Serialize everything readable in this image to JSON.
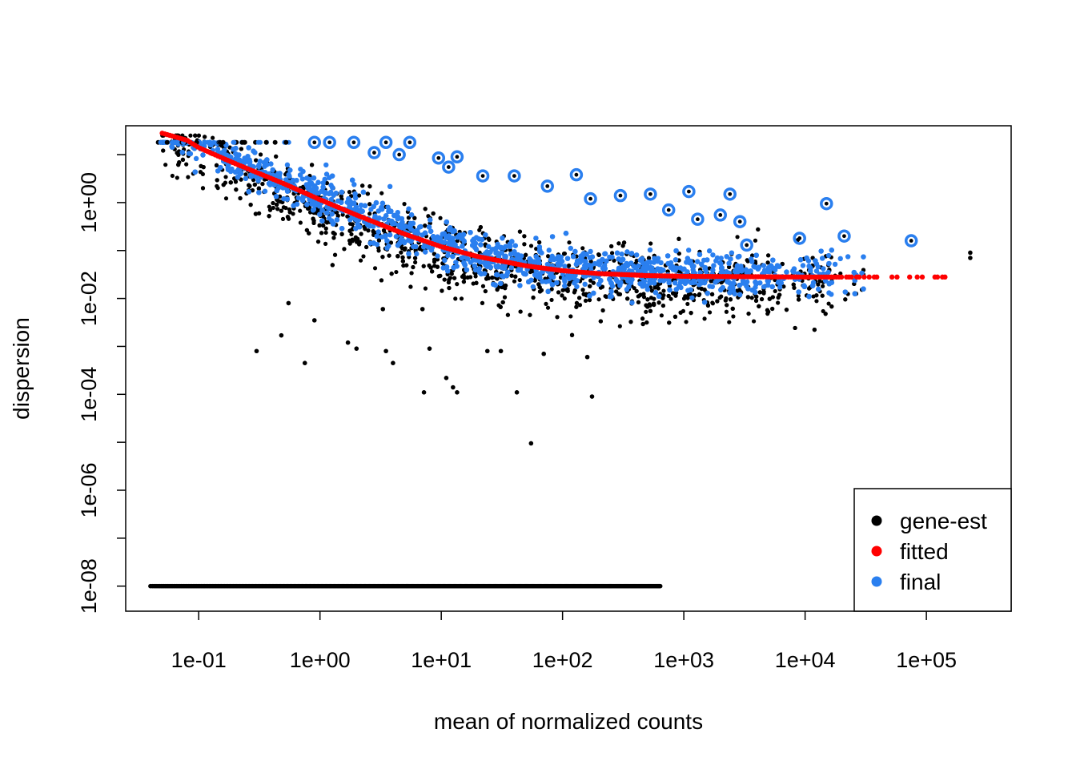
{
  "chart_data": {
    "type": "scatter",
    "title": "",
    "xlabel": "mean of normalized counts",
    "ylabel": "dispersion",
    "x_scale": "log10",
    "y_scale": "log10",
    "xlim": [
      0.025,
      500000
    ],
    "ylim": [
      3e-09,
      40
    ],
    "x_ticks": [
      {
        "value": 0.1,
        "label": "1e-01"
      },
      {
        "value": 1,
        "label": "1e+00"
      },
      {
        "value": 10,
        "label": "1e+01"
      },
      {
        "value": 100,
        "label": "1e+02"
      },
      {
        "value": 1000,
        "label": "1e+03"
      },
      {
        "value": 10000,
        "label": "1e+04"
      },
      {
        "value": 100000,
        "label": "1e+05"
      }
    ],
    "y_ticks": [
      {
        "value": 1e-08,
        "label": "1e-08"
      },
      {
        "value": 1e-07,
        "label": ""
      },
      {
        "value": 1e-06,
        "label": "1e-06"
      },
      {
        "value": 1e-05,
        "label": ""
      },
      {
        "value": 0.0001,
        "label": "1e-04"
      },
      {
        "value": 0.001,
        "label": ""
      },
      {
        "value": 0.01,
        "label": "1e-02"
      },
      {
        "value": 0.1,
        "label": ""
      },
      {
        "value": 1,
        "label": "1e+00"
      },
      {
        "value": 10,
        "label": ""
      }
    ],
    "legend": {
      "placement": "bottom-right",
      "entries": [
        {
          "label": "gene-est",
          "color": "#000000"
        },
        {
          "label": "fitted",
          "color": "#FF0000"
        },
        {
          "label": "final",
          "color": "#2A7FEF"
        }
      ]
    },
    "series": [
      {
        "name": "gene-est",
        "color": "#000000",
        "points": [
          [
            0.55,
            0.008
          ],
          [
            0.9,
            0.0035
          ],
          [
            1.7,
            0.0012
          ],
          [
            2.0,
            0.0009
          ],
          [
            3.5,
            0.0008
          ],
          [
            8.0,
            0.0009
          ],
          [
            0.3,
            0.0008
          ],
          [
            0.48,
            0.0017
          ],
          [
            0.75,
            0.00045
          ],
          [
            4.0,
            0.00045
          ],
          [
            11,
            0.00022
          ],
          [
            7.2,
            0.00011
          ],
          [
            12.5,
            0.00014
          ],
          [
            13.5,
            0.00011
          ],
          [
            42,
            0.00011
          ],
          [
            175,
            9e-05
          ],
          [
            55,
            9.5e-06
          ],
          [
            24,
            0.0008
          ],
          [
            31,
            0.0008
          ],
          [
            70,
            0.0007
          ],
          [
            160,
            0.0006
          ],
          [
            3.3,
            0.006
          ],
          [
            7,
            0.006
          ],
          [
            230000,
            0.09
          ],
          [
            230000,
            0.07
          ]
        ]
      },
      {
        "name": "gene-est (zero dispersion)",
        "color": "#000000",
        "xrange": [
          0.04,
          650
        ],
        "y": 1e-08
      },
      {
        "name": "fitted",
        "color": "#FF0000",
        "points": [
          [
            0.05,
            28
          ],
          [
            0.08,
            20
          ],
          [
            0.1,
            14
          ],
          [
            0.2,
            6.5
          ],
          [
            0.5,
            2.5
          ],
          [
            1,
            1.15
          ],
          [
            2,
            0.55
          ],
          [
            5,
            0.22
          ],
          [
            10,
            0.12
          ],
          [
            20,
            0.075
          ],
          [
            50,
            0.048
          ],
          [
            100,
            0.038
          ],
          [
            200,
            0.033
          ],
          [
            500,
            0.03
          ],
          [
            1000,
            0.029
          ],
          [
            10000,
            0.028
          ],
          [
            100000,
            0.028
          ],
          [
            230000,
            0.028
          ]
        ]
      },
      {
        "name": "final (outliers)",
        "color": "#2A7FEF",
        "points": [
          [
            0.9,
            18
          ],
          [
            1.2,
            18
          ],
          [
            1.9,
            18
          ],
          [
            3.5,
            18
          ],
          [
            5.5,
            18
          ],
          [
            4.5,
            10
          ],
          [
            2.8,
            11
          ],
          [
            9.5,
            8.5
          ],
          [
            11.5,
            5.5
          ],
          [
            13.5,
            9
          ],
          [
            22,
            3.6
          ],
          [
            40,
            3.6
          ],
          [
            130,
            3.8
          ],
          [
            75,
            2.2
          ],
          [
            170,
            1.2
          ],
          [
            300,
            1.4
          ],
          [
            530,
            1.5
          ],
          [
            2400,
            1.5
          ],
          [
            1100,
            1.7
          ],
          [
            15000,
            0.95
          ],
          [
            75000,
            0.16
          ],
          [
            3300,
            0.13
          ],
          [
            2900,
            0.4
          ],
          [
            21000,
            0.2
          ],
          [
            9000,
            0.18
          ],
          [
            750,
            0.7
          ],
          [
            1300,
            0.45
          ],
          [
            2000,
            0.55
          ]
        ]
      }
    ]
  }
}
